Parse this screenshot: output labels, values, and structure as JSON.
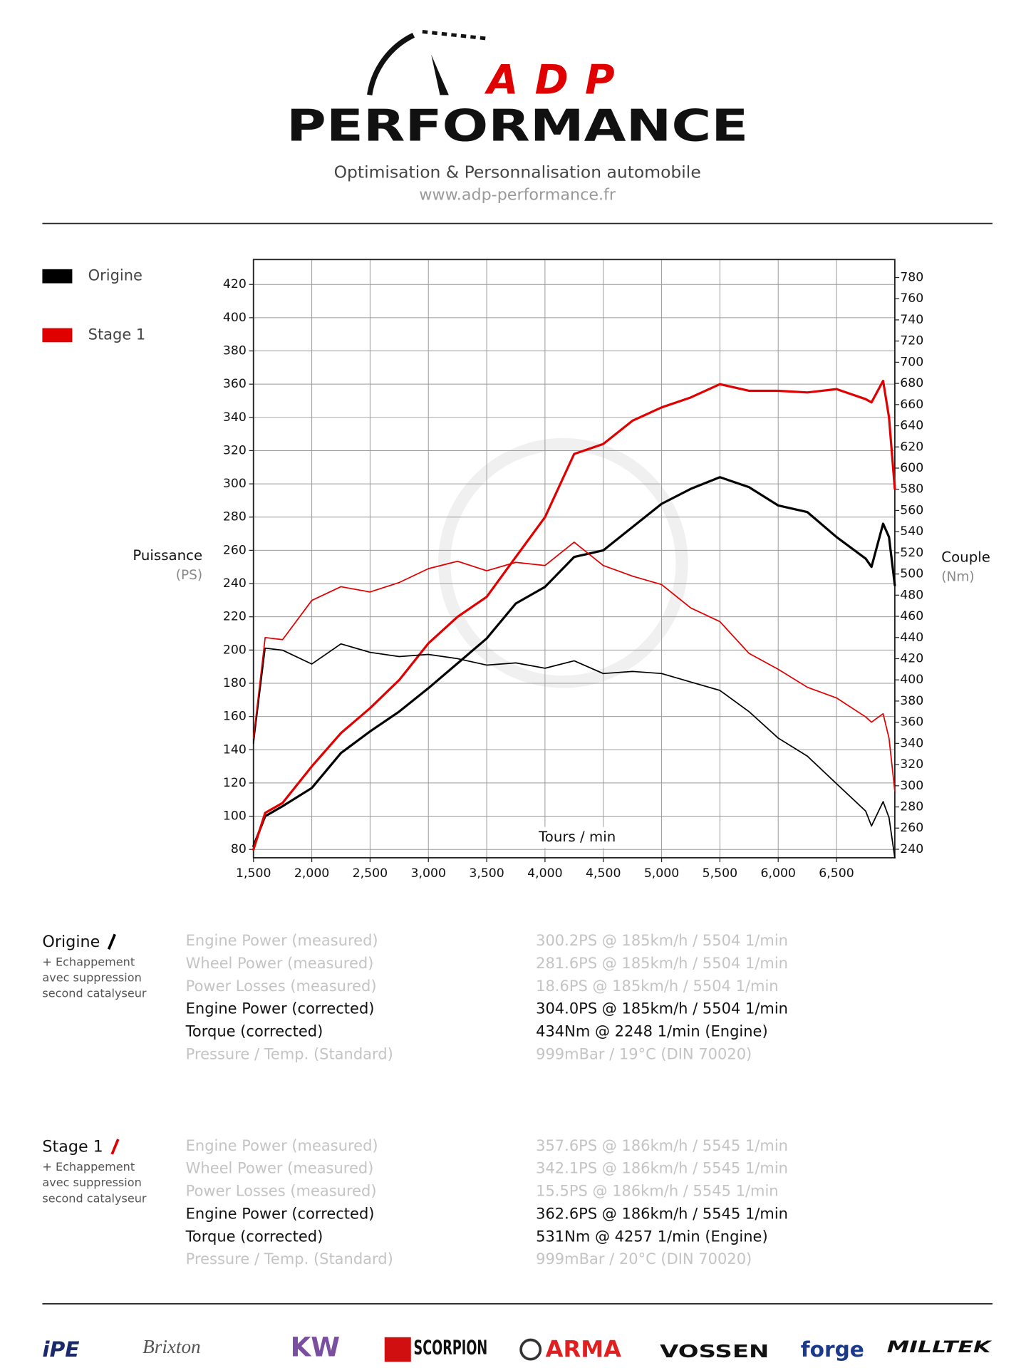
{
  "header": {
    "brand": "ADP",
    "name": "PERFORMANCE",
    "tagline": "Optimisation & Personnalisation automobile",
    "url": "www.adp-performance.fr"
  },
  "chart_data": {
    "type": "line",
    "x_label": "Tours / min",
    "y_label": "Puissance",
    "y_unit": "(PS)",
    "y2_label": "Couple",
    "y2_unit": "(Nm)",
    "grid": true,
    "legend": "left",
    "xlim": [
      1500,
      7000
    ],
    "xticks": [
      {
        "value": 1500,
        "label": "1,500"
      },
      {
        "value": 2000,
        "label": "2,000"
      },
      {
        "value": 2500,
        "label": "2,500"
      },
      {
        "value": 3000,
        "label": "3,000"
      },
      {
        "value": 3500,
        "label": "3,500"
      },
      {
        "value": 4000,
        "label": "4,000"
      },
      {
        "value": 4500,
        "label": "4,500"
      },
      {
        "value": 5000,
        "label": "5,000"
      },
      {
        "value": 5500,
        "label": "5,500"
      },
      {
        "value": 6000,
        "label": "6,000"
      },
      {
        "value": 6500,
        "label": "6,500"
      }
    ],
    "ylim": [
      75,
      435
    ],
    "yticks": [
      80,
      100,
      120,
      140,
      160,
      180,
      200,
      220,
      240,
      260,
      280,
      300,
      320,
      340,
      360,
      380,
      400,
      420
    ],
    "y2lim": [
      232,
      797
    ],
    "y2ticks": [
      240,
      260,
      280,
      300,
      320,
      340,
      360,
      380,
      400,
      420,
      440,
      460,
      480,
      500,
      520,
      540,
      560,
      580,
      600,
      620,
      640,
      660,
      680,
      700,
      720,
      740,
      760,
      780
    ],
    "x": [
      1500,
      1600,
      1750,
      2000,
      2250,
      2500,
      2750,
      3000,
      3250,
      3500,
      3750,
      4000,
      4250,
      4500,
      4750,
      5000,
      5250,
      5500,
      5750,
      6000,
      6250,
      6500,
      6750,
      6800,
      6900,
      6950,
      7000
    ],
    "series": [
      {
        "name": "Origine",
        "color": "#000000",
        "values": [
          82,
          100,
          106,
          117,
          138,
          151,
          163,
          177,
          192,
          207,
          228,
          238,
          256,
          260,
          274,
          288,
          297,
          304,
          298,
          287,
          283,
          268,
          255,
          250,
          276,
          268,
          239
        ]
      },
      {
        "name": "Stage 1",
        "color": "#e00000",
        "values": [
          80,
          102,
          108,
          130,
          150,
          165,
          182,
          204,
          220,
          232,
          256,
          280,
          318,
          324,
          338,
          346,
          352,
          360,
          356,
          356,
          355,
          357,
          351,
          349,
          362,
          340,
          297
        ]
      },
      {
        "name": "Origine",
        "color": "#000000",
        "axis": "y2",
        "values": [
          340,
          430,
          428,
          415,
          434,
          426,
          422,
          424,
          420,
          414,
          416,
          411,
          418,
          406,
          408,
          406,
          398,
          390,
          370,
          345,
          328,
          302,
          276,
          262,
          285,
          270,
          232
        ]
      },
      {
        "name": "Stage 1",
        "color": "#e00000",
        "axis": "y2",
        "values": [
          345,
          440,
          438,
          475,
          488,
          483,
          492,
          505,
          512,
          503,
          511,
          508,
          530,
          508,
          498,
          490,
          468,
          455,
          425,
          410,
          393,
          383,
          365,
          360,
          368,
          345,
          295
        ]
      }
    ]
  },
  "results": [
    {
      "title": "Origine",
      "note": [
        "+ Echappement",
        "avec suppression",
        "second catalyseur"
      ],
      "rows": [
        [
          "Engine Power (measured)",
          "300.2PS @ 185km/h / 5504 1/min"
        ],
        [
          "Wheel Power (measured)",
          "281.6PS @ 185km/h / 5504 1/min"
        ],
        [
          "Power Losses (measured)",
          "18.6PS @ 185km/h / 5504 1/min"
        ],
        [
          "Engine Power (corrected)",
          "304.0PS @ 185km/h / 5504 1/min"
        ],
        [
          "Torque (corrected)",
          "434Nm @ 2248 1/min (Engine)"
        ],
        [
          "Pressure / Temp. (Standard)",
          "999mBar / 19°C   (DIN 70020)"
        ]
      ]
    },
    {
      "title": "Stage 1",
      "note": [
        "+ Echappement",
        "avec suppression",
        "second catalyseur"
      ],
      "rows": [
        [
          "Engine Power (measured)",
          "357.6PS @ 186km/h / 5545 1/min"
        ],
        [
          "Wheel Power (measured)",
          "342.1PS @ 186km/h / 5545 1/min"
        ],
        [
          "Power Losses (measured)",
          "15.5PS @ 186km/h / 5545 1/min"
        ],
        [
          "Engine Power (corrected)",
          "362.6PS @ 186km/h / 5545 1/min"
        ],
        [
          "Torque (corrected)",
          "531Nm @ 4257 1/min (Engine)"
        ],
        [
          "Pressure / Temp. (Standard)",
          "999mBar / 20°C   (DIN 70020)"
        ]
      ]
    }
  ],
  "partners": [
    "iPE",
    "Brixton",
    "KW",
    "SCORPION",
    "ARMA",
    "VOSSEN",
    "forge",
    "MILLTEK"
  ]
}
